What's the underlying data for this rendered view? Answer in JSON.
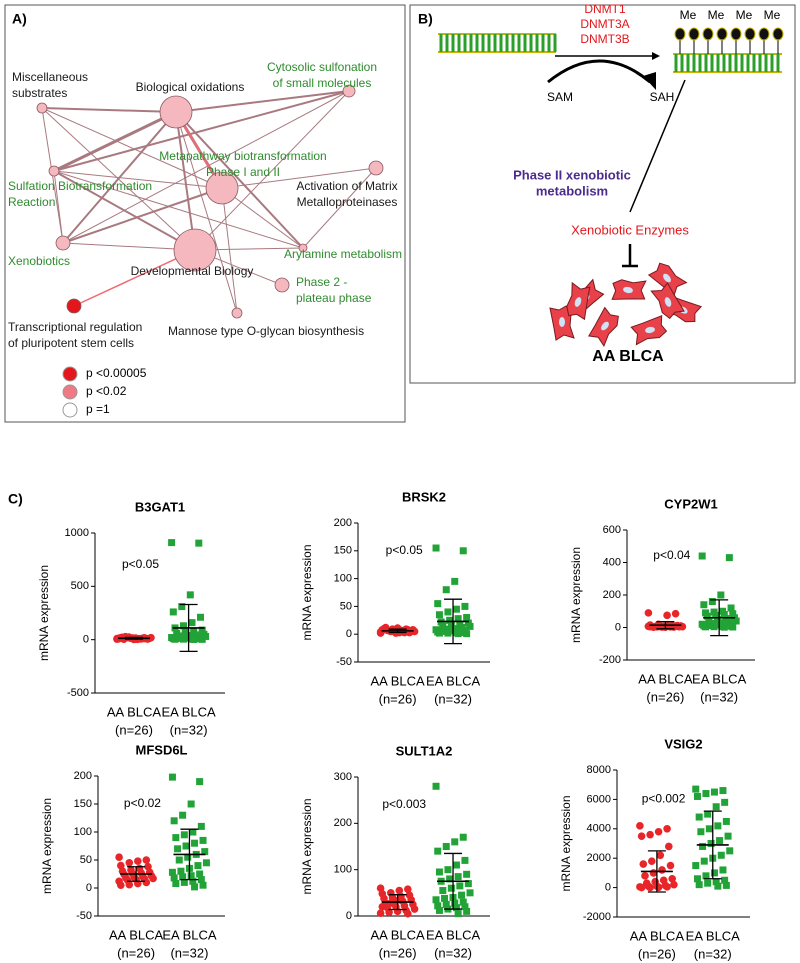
{
  "panel_a": {
    "label": "A)",
    "nodes": [
      {
        "label": [
          "Miscellaneous",
          "substrates"
        ],
        "text_color": "#1a1a1a",
        "fill": "#f5b8be"
      },
      {
        "label": [
          "Biological oxidations"
        ],
        "text_color": "#1a1a1a",
        "fill": "#f5b8be"
      },
      {
        "label": [
          "Cytosolic sulfonation",
          "of small molecules"
        ],
        "text_color": "#2e8b2e",
        "fill": "#f5b8be"
      },
      {
        "label": [
          "Metapathway biotransformation",
          "Phase I and II"
        ],
        "text_color": "#2e8b2e",
        "fill": "#f5b8be"
      },
      {
        "label": [
          "Activation of Matrix",
          "Metalloproteinases"
        ],
        "text_color": "#1a1a1a",
        "fill": "#f5b8be"
      },
      {
        "label": [
          "Sulfation Biotransformation",
          "Reaction"
        ],
        "text_color": "#2e8b2e",
        "fill": "#f5b8be"
      },
      {
        "label": [
          "Xenobiotics"
        ],
        "text_color": "#2e8b2e",
        "fill": "#f5b8be"
      },
      {
        "label": [
          "Developmental Biology"
        ],
        "text_color": "#1a1a1a",
        "fill": "#f5b8be"
      },
      {
        "label": [
          "Arylamine metabolism"
        ],
        "text_color": "#2e8b2e",
        "fill": "#f5b8be"
      },
      {
        "label": [
          "Phase 2 -",
          "plateau phase"
        ],
        "text_color": "#2e8b2e",
        "fill": "#f5b8be"
      },
      {
        "label": [
          "Transcriptional regulation",
          "of pluripotent stem cells"
        ],
        "text_color": "#1a1a1a",
        "fill": "#e3161b"
      },
      {
        "label": [
          "Mannose type O-glycan biosynthesis"
        ],
        "text_color": "#1a1a1a",
        "fill": "#f5b8be"
      }
    ],
    "legend": [
      {
        "label": "p <0.00005",
        "color": "#e3161b"
      },
      {
        "label": "p <0.02",
        "color": "#ef7a84"
      },
      {
        "label": "p =1",
        "color": "#ffffff"
      }
    ]
  },
  "panel_b": {
    "label": "B)",
    "enzymes": [
      "DNMT1",
      "DNMT3A",
      "DNMT3B"
    ],
    "donor": "SAM",
    "product": "SAH",
    "methyl": [
      "Me",
      "Me",
      "Me",
      "Me"
    ],
    "pathway": [
      "Phase II xenobiotic",
      "metabolism"
    ],
    "enzymes_label": "Xenobiotic Enzymes",
    "cells_label": "AA BLCA"
  },
  "panel_c": {
    "label": "C)"
  },
  "chart_data": [
    {
      "type": "scatter",
      "title": "B3GAT1",
      "ylabel": "mRNA expression",
      "annotation": "p<0.05",
      "categories": [
        "AA BLCA",
        "EA BLCA"
      ],
      "group_sizes": [
        "(n=26)",
        "(n=32)"
      ],
      "ylim": [
        -500,
        1000
      ],
      "yticks": [
        -500,
        0,
        500,
        1000
      ],
      "series": [
        {
          "name": "AA BLCA",
          "color": "#e8262a",
          "marker": "circle",
          "mean": 13,
          "sd": 8,
          "values": [
            5,
            10,
            15,
            20,
            8,
            12,
            3,
            25,
            18,
            6,
            9,
            14,
            22,
            11,
            7,
            16,
            4,
            19,
            13,
            2,
            28,
            10,
            17,
            8,
            21,
            12
          ]
        },
        {
          "name": "EA BLCA",
          "color": "#22a337",
          "marker": "square",
          "mean": 110,
          "sd": 220,
          "values": [
            910,
            905,
            420,
            310,
            260,
            210,
            160,
            130,
            110,
            90,
            80,
            70,
            60,
            50,
            45,
            40,
            35,
            30,
            28,
            25,
            22,
            20,
            18,
            15,
            12,
            10,
            8,
            6,
            5,
            4,
            3,
            2
          ]
        }
      ]
    },
    {
      "type": "scatter",
      "title": "BRSK2",
      "ylabel": "mRNA expression",
      "annotation": "p<0.05",
      "categories": [
        "AA BLCA",
        "EA BLCA"
      ],
      "group_sizes": [
        "(n=26)",
        "(n=32)"
      ],
      "ylim": [
        -50,
        200
      ],
      "yticks": [
        -50,
        0,
        50,
        100,
        150,
        200
      ],
      "series": [
        {
          "name": "AA BLCA",
          "color": "#e8262a",
          "marker": "circle",
          "mean": 6,
          "sd": 3,
          "values": [
            2,
            4,
            5,
            6,
            8,
            3,
            7,
            9,
            10,
            5,
            4,
            6,
            12,
            8,
            3,
            2,
            7,
            5,
            9,
            11,
            6,
            4,
            8,
            3,
            5,
            7
          ]
        },
        {
          "name": "EA BLCA",
          "color": "#22a337",
          "marker": "square",
          "mean": 23,
          "sd": 40,
          "values": [
            155,
            150,
            95,
            80,
            55,
            50,
            45,
            40,
            35,
            30,
            28,
            25,
            22,
            20,
            18,
            16,
            15,
            14,
            12,
            10,
            9,
            8,
            7,
            6,
            5,
            4,
            3,
            3,
            2,
            2,
            1,
            1
          ]
        }
      ]
    },
    {
      "type": "scatter",
      "title": "CYP2W1",
      "ylabel": "mRNA expression",
      "annotation": "p<0.04",
      "categories": [
        "AA BLCA",
        "EA BLCA"
      ],
      "group_sizes": [
        "(n=26)",
        "(n=32)"
      ],
      "ylim": [
        -200,
        600
      ],
      "yticks": [
        -200,
        0,
        200,
        400,
        600
      ],
      "series": [
        {
          "name": "AA BLCA",
          "color": "#e8262a",
          "marker": "circle",
          "mean": 14,
          "sd": 22,
          "values": [
            90,
            85,
            75,
            20,
            15,
            12,
            10,
            8,
            6,
            5,
            4,
            3,
            2,
            10,
            12,
            8,
            6,
            5,
            3,
            2,
            4,
            7,
            9,
            11,
            6,
            5
          ]
        },
        {
          "name": "EA BLCA",
          "color": "#22a337",
          "marker": "square",
          "mean": 60,
          "sd": 110,
          "values": [
            440,
            430,
            200,
            160,
            140,
            120,
            100,
            95,
            90,
            85,
            80,
            75,
            70,
            60,
            55,
            50,
            45,
            40,
            35,
            30,
            25,
            20,
            18,
            15,
            12,
            10,
            8,
            6,
            5,
            4,
            3,
            2
          ]
        }
      ]
    },
    {
      "type": "scatter",
      "title": "MFSD6L",
      "ylabel": "mRNA expression",
      "annotation": "p<0.02",
      "categories": [
        "AA BLCA",
        "EA BLCA"
      ],
      "group_sizes": [
        "(n=26)",
        "(n=32)"
      ],
      "ylim": [
        -50,
        200
      ],
      "yticks": [
        -50,
        0,
        50,
        100,
        150,
        200
      ],
      "series": [
        {
          "name": "AA BLCA",
          "color": "#e8262a",
          "marker": "circle",
          "mean": 25,
          "sd": 13,
          "values": [
            55,
            50,
            48,
            45,
            40,
            38,
            35,
            32,
            30,
            28,
            27,
            25,
            24,
            22,
            20,
            19,
            18,
            17,
            16,
            15,
            14,
            12,
            10,
            8,
            6,
            5
          ]
        },
        {
          "name": "EA BLCA",
          "color": "#22a337",
          "marker": "square",
          "mean": 60,
          "sd": 45,
          "values": [
            198,
            190,
            150,
            130,
            120,
            110,
            100,
            95,
            90,
            85,
            80,
            75,
            70,
            65,
            60,
            55,
            50,
            45,
            40,
            35,
            30,
            28,
            25,
            22,
            20,
            18,
            15,
            12,
            10,
            8,
            5,
            2
          ]
        }
      ]
    },
    {
      "type": "scatter",
      "title": "SULT1A2",
      "ylabel": "mRNA expression",
      "annotation": "p<0.003",
      "categories": [
        "AA BLCA",
        "EA BLCA"
      ],
      "group_sizes": [
        "(n=26)",
        "(n=32)"
      ],
      "ylim": [
        0,
        300
      ],
      "yticks": [
        0,
        100,
        200,
        300
      ],
      "series": [
        {
          "name": "AA BLCA",
          "color": "#e8262a",
          "marker": "circle",
          "mean": 30,
          "sd": 16,
          "values": [
            60,
            58,
            55,
            50,
            48,
            45,
            42,
            40,
            38,
            35,
            32,
            30,
            28,
            25,
            22,
            20,
            18,
            15,
            12,
            10,
            8,
            6,
            5,
            35,
            28,
            20
          ]
        },
        {
          "name": "EA BLCA",
          "color": "#22a337",
          "marker": "square",
          "mean": 75,
          "sd": 60,
          "values": [
            280,
            170,
            160,
            150,
            140,
            120,
            110,
            100,
            95,
            90,
            85,
            80,
            75,
            70,
            65,
            60,
            55,
            50,
            45,
            40,
            38,
            35,
            30,
            28,
            25,
            22,
            20,
            18,
            15,
            12,
            10,
            5
          ]
        }
      ]
    },
    {
      "type": "scatter",
      "title": "VSIG2",
      "ylabel": "mRNA expression",
      "annotation": "p<0.002",
      "categories": [
        "AA BLCA",
        "EA BLCA"
      ],
      "group_sizes": [
        "(n=26)",
        "(n=32)"
      ],
      "ylim": [
        -2000,
        8000
      ],
      "yticks": [
        -2000,
        0,
        2000,
        4000,
        6000,
        8000
      ],
      "series": [
        {
          "name": "AA BLCA",
          "color": "#e8262a",
          "marker": "circle",
          "mean": 1100,
          "sd": 1400,
          "values": [
            4200,
            4000,
            3800,
            3600,
            3500,
            2800,
            2200,
            1800,
            1600,
            1500,
            1200,
            1000,
            800,
            600,
            500,
            400,
            300,
            200,
            150,
            100,
            100,
            50,
            50,
            20,
            10,
            0
          ]
        },
        {
          "name": "EA BLCA",
          "color": "#22a337",
          "marker": "square",
          "mean": 2900,
          "sd": 2300,
          "values": [
            6700,
            6600,
            6500,
            6400,
            6200,
            5800,
            5500,
            5000,
            4800,
            4500,
            4200,
            4000,
            3800,
            3500,
            3200,
            3000,
            2800,
            2500,
            2200,
            2000,
            1800,
            1500,
            1200,
            1000,
            800,
            600,
            500,
            400,
            300,
            200,
            150,
            100
          ]
        }
      ]
    }
  ]
}
